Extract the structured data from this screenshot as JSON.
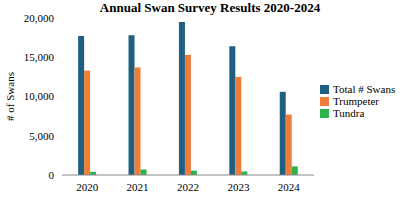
{
  "chart_data": {
    "type": "bar",
    "title": "Annual Swan Survey Results 2020-2024",
    "y_label": "# of Swans",
    "categories": [
      "2020",
      "2021",
      "2022",
      "2023",
      "2024"
    ],
    "series": [
      {
        "name": "Total # Swans",
        "color": "#1f5f82",
        "values": [
          17700,
          17800,
          19500,
          16400,
          10600
        ]
      },
      {
        "name": "Trumpeter",
        "color": "#ef7d3a",
        "values": [
          13300,
          13700,
          15300,
          12500,
          7700
        ]
      },
      {
        "name": "Tundra",
        "color": "#2db34a",
        "values": [
          400,
          700,
          550,
          450,
          1100
        ]
      }
    ],
    "ylim": [
      0,
      20000
    ],
    "yticks": [
      0,
      {
        "value": 5000,
        "label": "5,000"
      },
      {
        "value": 10000,
        "label": "10,000"
      },
      {
        "value": 15000,
        "label": "15,000"
      },
      {
        "value": 20000,
        "label": "20,000"
      }
    ],
    "grid": false,
    "legend": "right"
  }
}
